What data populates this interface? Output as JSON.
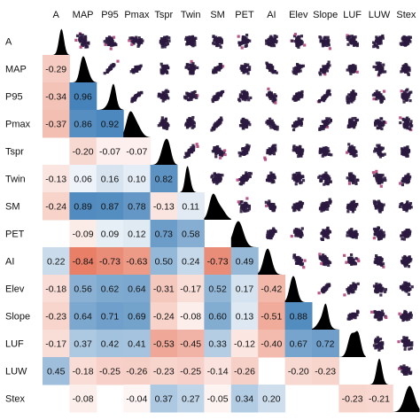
{
  "chart_data": {
    "type": "heatmap",
    "variables": [
      "A",
      "MAP",
      "P95",
      "Pmax",
      "Tspr",
      "Twin",
      "SM",
      "PET",
      "AI",
      "Elev",
      "Slope",
      "LUF",
      "LUW",
      "Stex"
    ],
    "lower_triangle_values": [
      [],
      [
        -0.29
      ],
      [
        -0.34,
        0.96
      ],
      [
        -0.37,
        0.86,
        0.92
      ],
      [
        null,
        -0.2,
        -0.07,
        -0.07
      ],
      [
        -0.13,
        0.06,
        0.16,
        0.1,
        0.82
      ],
      [
        -0.24,
        0.89,
        0.87,
        0.78,
        -0.13,
        0.11
      ],
      [
        null,
        -0.09,
        0.09,
        0.12,
        0.73,
        0.58,
        null
      ],
      [
        0.22,
        -0.84,
        -0.73,
        -0.63,
        0.5,
        0.24,
        -0.73,
        0.49
      ],
      [
        -0.18,
        0.56,
        0.62,
        0.64,
        -0.31,
        -0.17,
        0.52,
        0.17,
        -0.42
      ],
      [
        -0.23,
        0.64,
        0.71,
        0.69,
        -0.24,
        -0.08,
        0.6,
        0.13,
        -0.51,
        0.88
      ],
      [
        -0.17,
        0.37,
        0.42,
        0.41,
        -0.53,
        -0.45,
        0.33,
        -0.12,
        -0.4,
        0.67,
        0.72
      ],
      [
        0.45,
        -0.18,
        -0.25,
        -0.26,
        -0.23,
        -0.25,
        -0.14,
        -0.26,
        null,
        -0.2,
        -0.23,
        null
      ],
      [
        null,
        -0.08,
        null,
        -0.04,
        0.37,
        0.27,
        -0.05,
        0.34,
        0.2,
        null,
        null,
        -0.23,
        -0.21
      ]
    ],
    "value_range": [
      -1,
      1
    ],
    "colors": {
      "positive": "#3f7fb8",
      "negative": "#e46a4e",
      "neutral": "#ffffff",
      "density_fill": "#000000",
      "hexbin_low": "#f3b877",
      "hexbin_mid": "#b2457a",
      "hexbin_high": "#2b1a3f"
    },
    "diagonal": "density",
    "upper_triangle": "hexbin-scatter",
    "legend": "none"
  }
}
